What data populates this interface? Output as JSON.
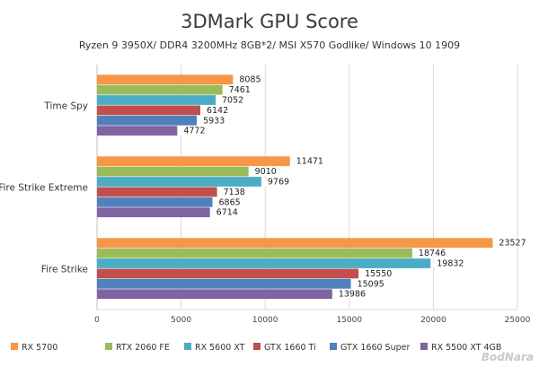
{
  "chart_data": {
    "type": "bar",
    "orientation": "horizontal",
    "title": "3DMark GPU Score",
    "subtitle": "Ryzen 9 3950X/ DDR4 3200MHz 8GB*2/ MSI X570 Godlike/ Windows 10 1909",
    "categories": [
      "Time Spy",
      "Fire Strike Extreme",
      "Fire Strike"
    ],
    "xlim": [
      0,
      25000
    ],
    "xticks": [
      0,
      5000,
      10000,
      15000,
      20000,
      25000
    ],
    "legend_position": "bottom",
    "grid": true,
    "series": [
      {
        "name": "RX 5700",
        "color": "#f79646",
        "values": [
          8085,
          11471,
          23527
        ]
      },
      {
        "name": "RTX 2060 FE",
        "color": "#9bbb59",
        "values": [
          7461,
          9010,
          18746
        ]
      },
      {
        "name": "RX 5600 XT",
        "color": "#4bacc6",
        "values": [
          7052,
          9769,
          19832
        ]
      },
      {
        "name": "GTX 1660 Ti",
        "color": "#c0504d",
        "values": [
          6142,
          7138,
          15550
        ]
      },
      {
        "name": "GTX 1660 Super",
        "color": "#4f81bd",
        "values": [
          5933,
          6865,
          15095
        ]
      },
      {
        "name": "RX 5500 XT 4GB",
        "color": "#8064a2",
        "values": [
          4772,
          6714,
          13986
        ]
      }
    ]
  },
  "watermark": "BodNara"
}
